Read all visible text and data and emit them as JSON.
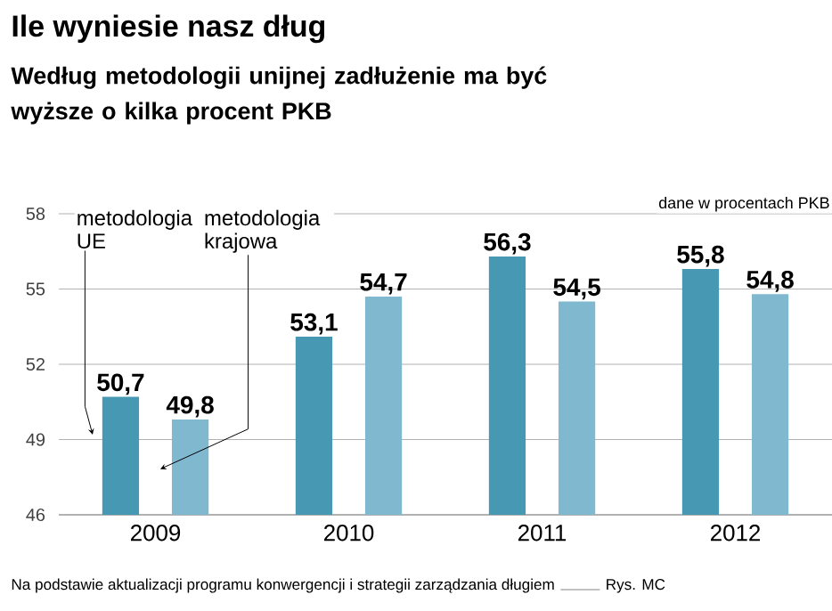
{
  "chart_data": {
    "type": "bar",
    "title": "Ile wyniesie nasz dług",
    "subtitle": "Według metodologii unijnej zadłużenie ma być wyższe o kilka procent PKB",
    "categories": [
      "2009",
      "2010",
      "2011",
      "2012"
    ],
    "series": [
      {
        "name": "metodologia UE",
        "color": "#4799b3",
        "values": [
          50.7,
          53.1,
          56.3,
          55.8
        ],
        "value_labels": [
          "50,7",
          "53,1",
          "56,3",
          "55,8"
        ]
      },
      {
        "name": "metodologia krajowa",
        "color": "#7fb8cf",
        "values": [
          49.8,
          54.7,
          54.5,
          54.8
        ],
        "value_labels": [
          "49,8",
          "54,7",
          "54,5",
          "54,8"
        ]
      }
    ],
    "ylim": [
      46,
      58
    ],
    "yticks": [
      46,
      49,
      52,
      55,
      58
    ],
    "grid": "y",
    "annotations": [
      "dane w procentach PKB",
      "Na podstawie aktualizacji programu konwergencji i strategii zarządzania długiem",
      "Rys. MC"
    ]
  }
}
